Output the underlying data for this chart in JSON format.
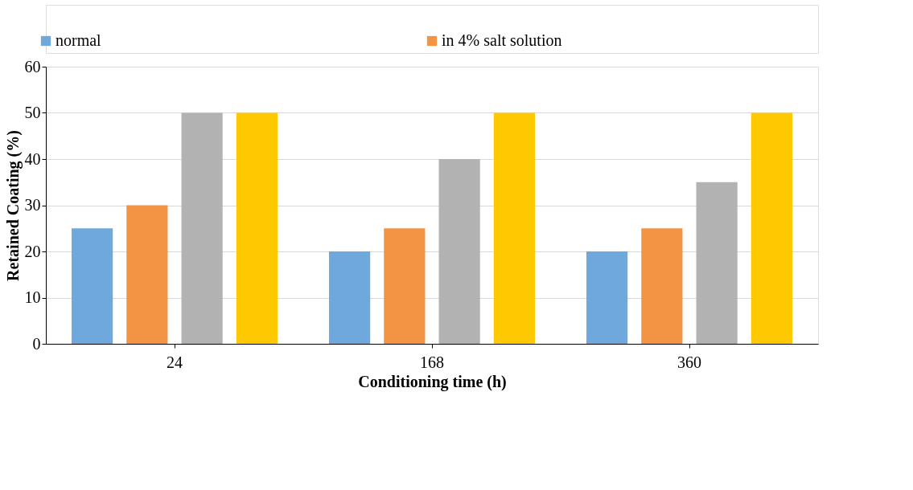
{
  "chart_data": {
    "type": "bar",
    "xlabel": "Conditioning time (h)",
    "ylabel": "Retained Coating (%)",
    "categories": [
      "24",
      "168",
      "360"
    ],
    "series": [
      {
        "name": "normal",
        "color": "#6fa8dc",
        "values": [
          25,
          20,
          20
        ]
      },
      {
        "name": "in 4% salt solution",
        "color": "#f39445",
        "values": [
          30,
          25,
          25
        ]
      },
      {
        "color": "#b2b2b2",
        "values": [
          50,
          40,
          35
        ]
      },
      {
        "color": "#ffc800",
        "values": [
          50,
          50,
          50
        ]
      }
    ],
    "ylim": [
      0,
      60
    ],
    "yticks": [
      0,
      10,
      20,
      30,
      40,
      50,
      60
    ],
    "grid": "y",
    "legend": "top"
  }
}
